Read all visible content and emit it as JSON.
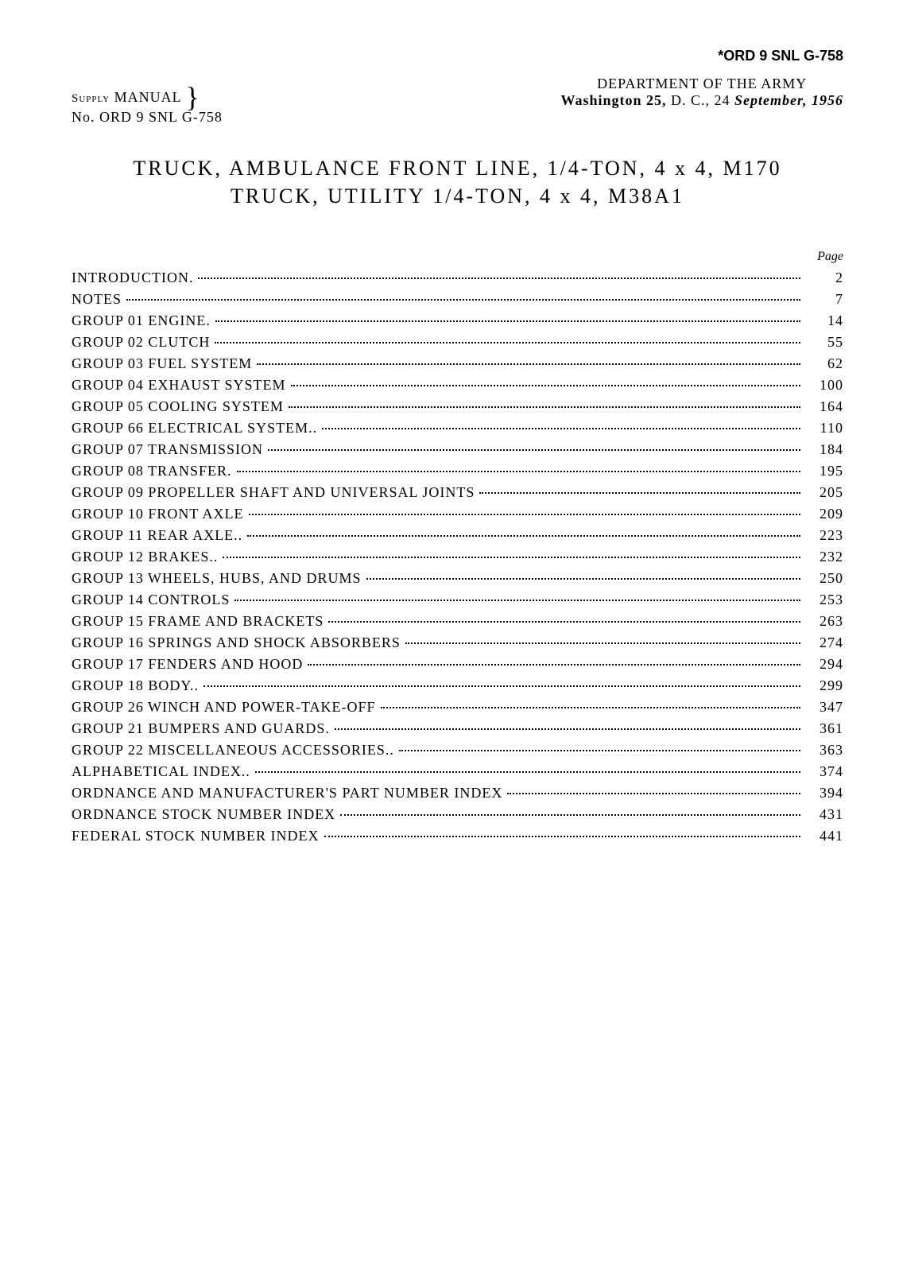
{
  "doc_id": "*ORD 9 SNL G-758",
  "header": {
    "supply_label": "Supply",
    "manual_label": "MANUAL",
    "manual_no": "No. ORD 9 SNL G-758",
    "dept_line": "DEPARTMENT OF THE ARMY",
    "wash_line_a": "Washington 25,",
    "wash_line_b": "D. C., 24",
    "wash_line_c": "September, 1956"
  },
  "title": {
    "line1": "TRUCK, AMBULANCE FRONT LINE, 1/4-TON, 4 x 4, M170",
    "line2": "TRUCK, UTILITY 1/4-TON, 4 x 4, M38A1"
  },
  "page_label": "Page",
  "toc": [
    {
      "label": "INTRODUCTION.",
      "page": "2"
    },
    {
      "label": "NOTES",
      "page": "7"
    },
    {
      "label": "GROUP 01 ENGINE.",
      "page": "14"
    },
    {
      "label": "GROUP 02 CLUTCH",
      "page": "55"
    },
    {
      "label": "GROUP 03 FUEL SYSTEM",
      "page": "62"
    },
    {
      "label": "GROUP 04 EXHAUST SYSTEM",
      "page": "100"
    },
    {
      "label": "GROUP 05 COOLING SYSTEM",
      "page": "164"
    },
    {
      "label": "GROUP 66 ELECTRICAL SYSTEM..",
      "page": "110"
    },
    {
      "label": "GROUP 07 TRANSMISSION",
      "page": "184"
    },
    {
      "label": "GROUP 08 TRANSFER.",
      "page": "195"
    },
    {
      "label": "GROUP 09 PROPELLER SHAFT AND UNIVERSAL JOINTS",
      "page": "205"
    },
    {
      "label": "GROUP 10 FRONT AXLE",
      "page": "209"
    },
    {
      "label": "GROUP 11 REAR AXLE..",
      "page": "223"
    },
    {
      "label": "GROUP 12 BRAKES..",
      "page": "232"
    },
    {
      "label": "GROUP 13 WHEELS, HUBS, AND DRUMS",
      "page": "250"
    },
    {
      "label": "GROUP 14 CONTROLS",
      "page": "253"
    },
    {
      "label": "GROUP 15 FRAME AND BRACKETS",
      "page": "263"
    },
    {
      "label": "GROUP 16 SPRINGS AND SHOCK ABSORBERS",
      "page": "274"
    },
    {
      "label": "GROUP 17 FENDERS AND HOOD",
      "page": "294"
    },
    {
      "label": "GROUP 18 BODY..",
      "page": "299"
    },
    {
      "label": "GROUP 26 WINCH AND POWER-TAKE-OFF",
      "page": "347"
    },
    {
      "label": "GROUP 21 BUMPERS AND GUARDS.",
      "page": "361"
    },
    {
      "label": "GROUP 22 MISCELLANEOUS ACCESSORIES..",
      "page": "363"
    },
    {
      "label": "ALPHABETICAL INDEX..",
      "page": "374"
    },
    {
      "label": "ORDNANCE AND MANUFACTURER'S PART NUMBER INDEX",
      "page": "394"
    },
    {
      "label": "ORDNANCE STOCK NUMBER INDEX",
      "page": "431"
    },
    {
      "label": "FEDERAL STOCK NUMBER INDEX",
      "page": "441"
    }
  ]
}
